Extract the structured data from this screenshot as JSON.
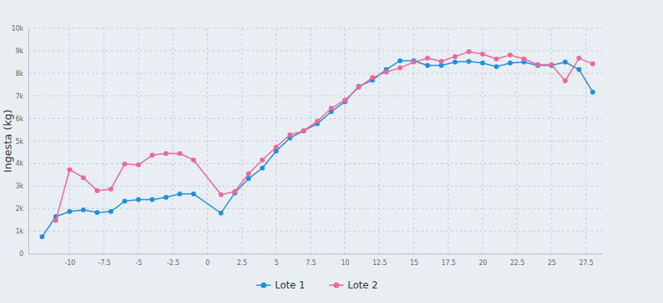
{
  "chart_data": {
    "type": "line",
    "y_label": "Ingesta (kg)",
    "x": [
      -12,
      -11,
      -10,
      -9,
      -8,
      -7,
      -6,
      -5,
      -4,
      -3,
      -2,
      -1,
      1,
      2,
      3,
      4,
      5,
      6,
      7,
      8,
      9,
      10,
      11,
      12,
      13,
      14,
      15,
      16,
      17,
      18,
      19,
      20,
      21,
      22,
      23,
      24,
      25,
      26,
      27,
      28
    ],
    "series": [
      {
        "name": "Lote 1",
        "color": "#1f8fe0",
        "marker": "circle",
        "line_style": "solid",
        "values": [
          750,
          1650,
          1870,
          1940,
          1830,
          1870,
          2330,
          2400,
          2400,
          2500,
          2650,
          2650,
          1800,
          2700,
          3330,
          3800,
          4550,
          5130,
          5450,
          5770,
          6300,
          6740,
          7420,
          7700,
          8170,
          8560,
          8560,
          8350,
          8350,
          8500,
          8530,
          8460,
          8300,
          8460,
          8500,
          8350,
          8350,
          8500,
          8170,
          7170
        ]
      },
      {
        "name": "Lote 2",
        "color": "#f0659a",
        "marker": "circle",
        "line_style": "solid",
        "values": [
          null,
          1470,
          3730,
          3370,
          2800,
          2870,
          3980,
          3940,
          4370,
          4440,
          4440,
          4160,
          2620,
          2760,
          3550,
          4160,
          4730,
          5270,
          5450,
          5880,
          6450,
          6810,
          7380,
          7810,
          8060,
          8240,
          8500,
          8670,
          8530,
          8750,
          8960,
          8850,
          8640,
          8820,
          8640,
          8390,
          8390,
          7670,
          8670,
          8420
        ]
      }
    ],
    "xlim": [
      -13,
      28.7
    ],
    "xticks": [
      -10,
      -7.5,
      -5,
      -2.5,
      0,
      2.5,
      5,
      7.5,
      10,
      12.5,
      15,
      17.5,
      20,
      22.5,
      25,
      27.5
    ],
    "ylim": [
      0,
      10000
    ],
    "yticks": [
      0,
      {
        "value": 1000,
        "label": "1k"
      },
      {
        "value": 2000,
        "label": "2k"
      },
      {
        "value": 3000,
        "label": "3k"
      },
      {
        "value": 4000,
        "label": "4k"
      },
      {
        "value": 5000,
        "label": "5k"
      },
      {
        "value": 6000,
        "label": "6k"
      },
      {
        "value": 7000,
        "label": "7k"
      },
      {
        "value": 8000,
        "label": "8k"
      },
      {
        "value": 9000,
        "label": "9k"
      },
      {
        "value": 10000,
        "label": "10k"
      }
    ],
    "grid": true,
    "legend": "bottom"
  }
}
